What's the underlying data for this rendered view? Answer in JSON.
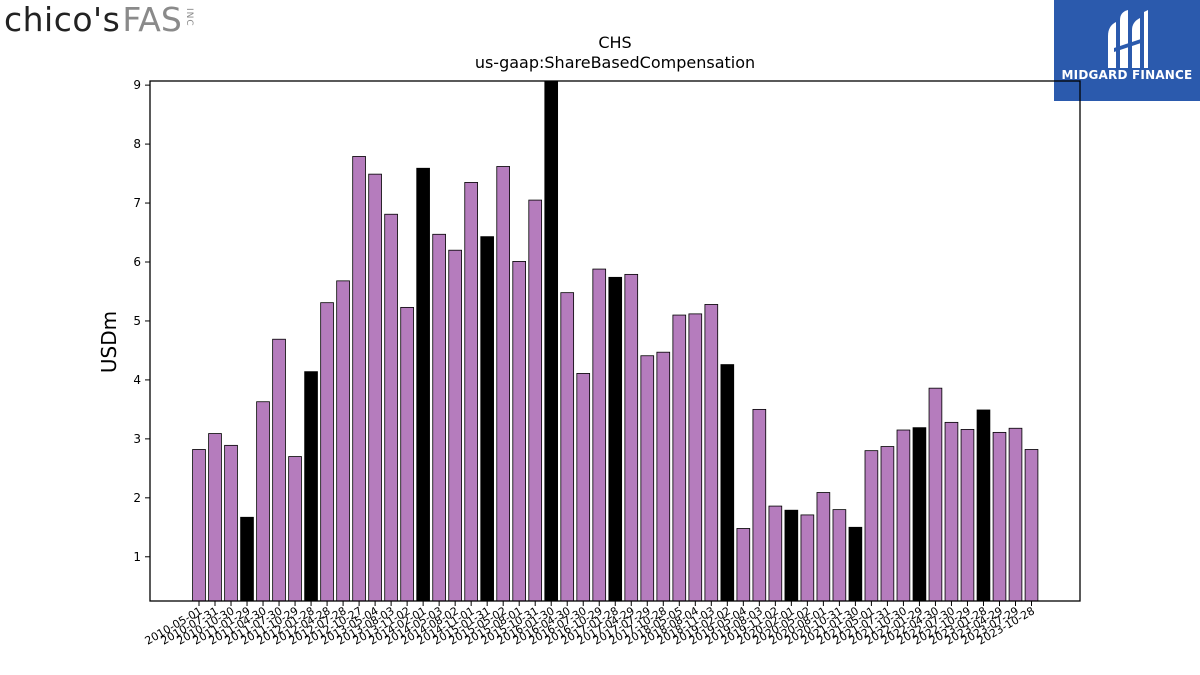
{
  "logo_left": {
    "brand": "chico's",
    "fas": "FAS",
    "inc": "INC"
  },
  "logo_right": {
    "name": "MIDGARD FINANCE",
    "icon": "midgard-m-icon",
    "bg_color": "#2b5aad"
  },
  "chart_data": {
    "type": "bar",
    "title": "CHS",
    "subtitle": "us-gaap:ShareBasedCompensation",
    "xlabel": "",
    "ylabel": "USDm",
    "ylim": [
      0.25,
      9.07
    ],
    "yticks": [
      1,
      2,
      3,
      4,
      5,
      6,
      7,
      8,
      9
    ],
    "grid": false,
    "colors": {
      "default": "#b57cbd",
      "highlight": "#000000",
      "edge": "#000000"
    },
    "categories": [
      "2010-05-01",
      "2010-07-31",
      "2010-10-30",
      "2011-01-29",
      "2011-04-30",
      "2011-07-30",
      "2011-10-29",
      "2012-01-28",
      "2012-04-28",
      "2012-07-28",
      "2012-10-27",
      "2013-05-04",
      "2013-08-03",
      "2013-11-02",
      "2014-02-01",
      "2014-05-03",
      "2014-08-02",
      "2014-11-01",
      "2015-01-31",
      "2015-05-02",
      "2015-08-01",
      "2015-10-31",
      "2016-01-30",
      "2016-04-30",
      "2016-07-30",
      "2016-10-29",
      "2017-01-28",
      "2017-04-29",
      "2017-07-29",
      "2017-10-28",
      "2018-05-05",
      "2018-08-04",
      "2018-11-03",
      "2019-02-02",
      "2019-05-04",
      "2019-08-03",
      "2019-11-02",
      "2020-02-01",
      "2020-05-02",
      "2020-08-01",
      "2020-10-31",
      "2021-01-30",
      "2021-05-01",
      "2021-07-31",
      "2021-10-30",
      "2022-01-29",
      "2022-04-30",
      "2022-07-30",
      "2022-10-29",
      "2023-01-28",
      "2023-04-29",
      "2023-07-29",
      "2023-10-28"
    ],
    "values": [
      2.82,
      3.09,
      2.89,
      1.67,
      3.63,
      4.69,
      2.7,
      4.14,
      5.31,
      5.68,
      7.79,
      7.49,
      6.81,
      5.23,
      7.59,
      6.47,
      6.2,
      7.35,
      6.43,
      7.62,
      6.01,
      7.05,
      9.07,
      5.48,
      4.11,
      5.88,
      5.74,
      5.79,
      4.41,
      4.47,
      5.1,
      5.12,
      5.28,
      4.26,
      1.48,
      3.5,
      1.86,
      1.79,
      1.71,
      2.09,
      1.8,
      1.5,
      2.8,
      2.87,
      3.15,
      3.19,
      3.86,
      3.28,
      3.16,
      3.49,
      3.11,
      3.18,
      2.82
    ],
    "highlight": [
      false,
      false,
      false,
      true,
      false,
      false,
      false,
      true,
      false,
      false,
      false,
      false,
      false,
      false,
      true,
      false,
      false,
      false,
      true,
      false,
      false,
      false,
      true,
      false,
      false,
      false,
      true,
      false,
      false,
      false,
      false,
      false,
      false,
      true,
      false,
      false,
      false,
      true,
      false,
      false,
      false,
      true,
      false,
      false,
      false,
      true,
      false,
      false,
      false,
      true,
      false,
      false,
      false
    ]
  }
}
